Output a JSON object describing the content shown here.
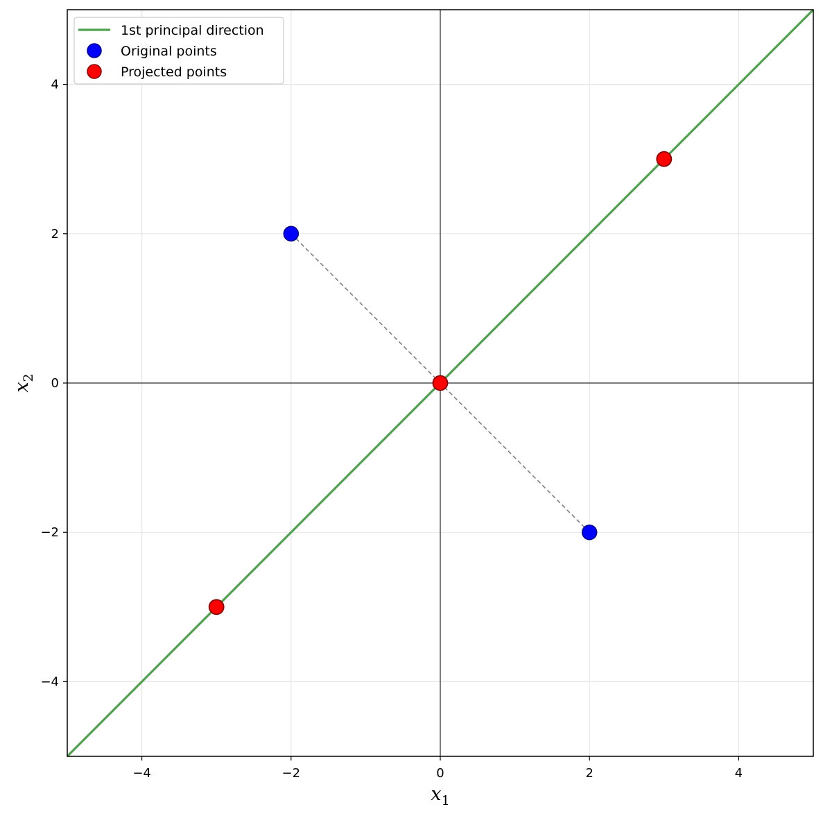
{
  "chart_data": {
    "type": "scatter",
    "title": "",
    "xlabel": {
      "base": "x",
      "sub": "1"
    },
    "ylabel": {
      "base": "x",
      "sub": "2"
    },
    "xlim": [
      -5,
      5
    ],
    "ylim": [
      -5,
      5
    ],
    "xticks": [
      -4,
      -2,
      0,
      2,
      4
    ],
    "yticks": [
      -4,
      -2,
      0,
      2,
      4
    ],
    "xtick_labels": [
      "−4",
      "−2",
      "0",
      "2",
      "4"
    ],
    "ytick_labels": [
      "−4",
      "−2",
      "0",
      "2",
      "4"
    ],
    "grid": true,
    "legend_position": "top-left",
    "principal_direction": {
      "name": "1st principal direction",
      "from": [
        -5,
        -5
      ],
      "to": [
        5,
        5
      ],
      "color": "#4ea24e"
    },
    "original_points": {
      "name": "Original points",
      "color": "#0000ff",
      "points": [
        [
          -2,
          2
        ],
        [
          2,
          -2
        ]
      ]
    },
    "projected_points": {
      "name": "Projected points",
      "color": "#ff0000",
      "points": [
        [
          3,
          3
        ],
        [
          0,
          0
        ],
        [
          -3,
          -3
        ]
      ]
    },
    "projection_lines": {
      "color": "#808080",
      "segments": [
        [
          [
            -2,
            2
          ],
          [
            0,
            0
          ]
        ],
        [
          [
            2,
            -2
          ],
          [
            0,
            0
          ]
        ]
      ]
    }
  }
}
